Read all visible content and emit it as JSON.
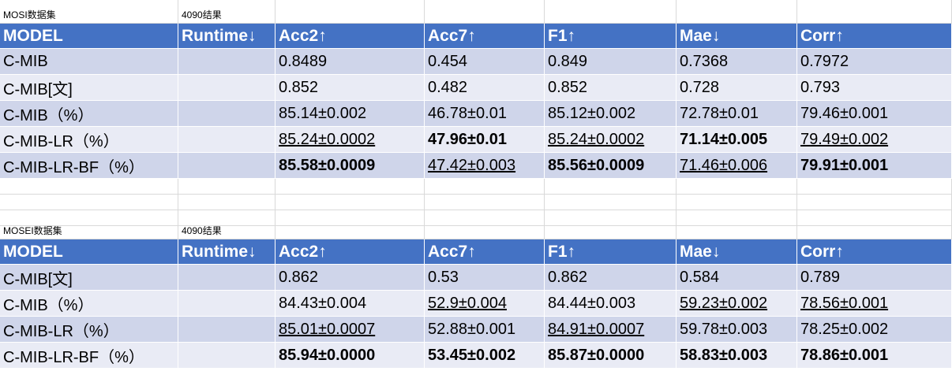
{
  "mosi": {
    "title": "MOSI数据集",
    "subtitle": "4090结果",
    "headers": [
      "MODEL",
      "Runtime↓",
      "Acc2↑",
      "Acc7↑",
      "F1↑",
      "Mae↓",
      "Corr↑"
    ],
    "rows": [
      [
        "C-MIB",
        "",
        "0.8489",
        "0.454",
        "0.849",
        "0.7368",
        "0.7972"
      ],
      [
        "C-MIB[文]",
        "",
        "0.852",
        "0.482",
        "0.852",
        "0.728",
        "0.793"
      ],
      [
        "C-MIB（%）",
        "",
        "85.14±0.002",
        "46.78±0.01",
        "85.12±0.002",
        "72.78±0.01",
        "79.46±0.001"
      ],
      [
        "C-MIB-LR（%）",
        "",
        "85.24±0.0002",
        "47.96±0.01",
        "85.24±0.0002",
        "71.14±0.005",
        "79.49±0.002"
      ],
      [
        "C-MIB-LR-BF（%）",
        "",
        "85.58±0.0009",
        "47.42±0.003",
        "85.56±0.0009",
        "71.46±0.006",
        "79.91±0.001"
      ]
    ]
  },
  "mosei": {
    "title": "MOSEI数据集",
    "subtitle": "4090结果",
    "headers": [
      "MODEL",
      "Runtime↓",
      "Acc2↑",
      "Acc7↑",
      "F1↑",
      "Mae↓",
      "Corr↑"
    ],
    "rows": [
      [
        "C-MIB[文]",
        "",
        "0.862",
        "0.53",
        "0.862",
        "0.584",
        "0.789"
      ],
      [
        "C-MIB（%）",
        "",
        "84.43±0.004",
        "52.9±0.004",
        "84.44±0.003",
        "59.23±0.002",
        "78.56±0.001"
      ],
      [
        "C-MIB-LR（%）",
        "",
        "85.01±0.0007",
        "52.88±0.001",
        "84.91±0.0007",
        "59.78±0.003",
        "78.25±0.002"
      ],
      [
        "C-MIB-LR-BF（%）",
        "",
        "85.94±0.0000",
        "53.45±0.002",
        "85.87±0.0000",
        "58.83±0.003",
        "78.86±0.001"
      ]
    ]
  }
}
